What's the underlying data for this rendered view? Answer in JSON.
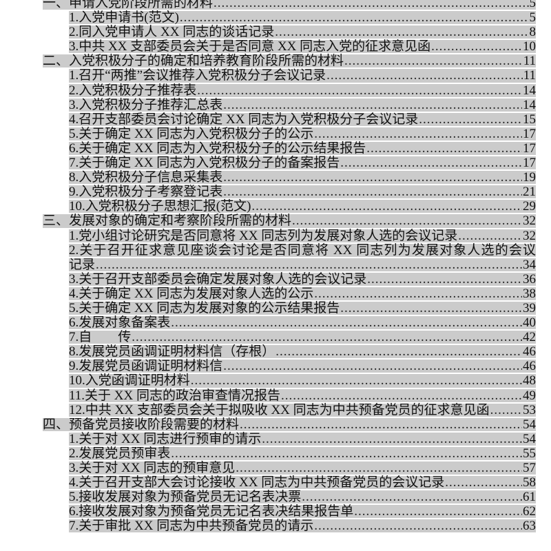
{
  "toc": [
    {
      "level": 1,
      "label": "一、申请入党阶段所需的材料",
      "page": "5"
    },
    {
      "level": 2,
      "label": "1.入党申请书(范文)",
      "page": "5"
    },
    {
      "level": 2,
      "label": "2.同入党申请人 XX 同志的谈话记录",
      "page": "8"
    },
    {
      "level": 2,
      "label": "3.中共 XX 支部委员会关于是否同意 XX 同志入党的征求意见函",
      "page": "10"
    },
    {
      "level": 1,
      "label": "二、入党积极分子的确定和培养教育阶段所需的材料",
      "page": "11"
    },
    {
      "level": 2,
      "label": "1.召开“两推”会议推荐入党积极分子会议记录",
      "page": "11"
    },
    {
      "level": 2,
      "label": "2.入党积极分子推荐表",
      "page": "14"
    },
    {
      "level": 2,
      "label": "3.入党积极分子推荐汇总表",
      "page": "14"
    },
    {
      "level": 2,
      "label": "4.召开支部委员会讨论确定 XX 同志为入党积极分子会议记录",
      "page": "15"
    },
    {
      "level": 2,
      "label": "5.关于确定 XX 同志为入党积极分子的公示",
      "page": "17"
    },
    {
      "level": 2,
      "label": "6.关于确定 XX 同志为入党积极分子的公示结果报告",
      "page": "17"
    },
    {
      "level": 2,
      "label": "7.关于确定 XX 同志为入党积极分子的备案报告",
      "page": "17"
    },
    {
      "level": 2,
      "label": "8.入党积极分子信息采集表",
      "page": "19"
    },
    {
      "level": 2,
      "label": "9.入党积极分子考察登记表",
      "page": "21"
    },
    {
      "level": 2,
      "label": "10.入党积极分子思想汇报(范文)",
      "page": "29"
    },
    {
      "level": 1,
      "label": "三、发展对象的确定和考察阶段所需的材料",
      "page": "32"
    },
    {
      "level": 2,
      "label": "1.党小组讨论研究是否同意将 XX 同志列为发展对象人选的会议记录",
      "page": "32"
    },
    {
      "level": 2,
      "label": "2.关于召开征求意见座谈会讨论是否同意将 XX 同志列为发展对象人选的会议",
      "wrap": true
    },
    {
      "level": 2,
      "label": "记录",
      "page": "34"
    },
    {
      "level": 2,
      "label": "3.关于召开支部委员会确定发展对象人选的会议记录",
      "page": "36"
    },
    {
      "level": 2,
      "label": "4.关于确定 XX 同志为发展对象人选的公示",
      "page": "38"
    },
    {
      "level": 2,
      "label": "5.关于确定 XX 同志为发展对象的公示结果报告",
      "page": "39"
    },
    {
      "level": 2,
      "label": "6.发展对象备案表",
      "page": "40"
    },
    {
      "level": 2,
      "label": "7.自　　传",
      "page": "42"
    },
    {
      "level": 2,
      "label": "8.发展党员函调证明材料信（存根）",
      "page": "46"
    },
    {
      "level": 2,
      "label": "9.发展党员函调证明材料信",
      "page": "46"
    },
    {
      "level": 2,
      "label": "10.入党函调证明材料",
      "page": "48"
    },
    {
      "level": 2,
      "label": "11.关于 XX 同志的政治审查情况报告",
      "page": "49"
    },
    {
      "level": 2,
      "label": "12.中共 XX 支部委员会关于拟吸收 XX 同志为中共预备党员的征求意见函",
      "page": "53"
    },
    {
      "level": 1,
      "label": "四、预备党员接收阶段需要的材料",
      "page": "54"
    },
    {
      "level": 2,
      "label": "1.关于对 XX 同志进行预审的请示",
      "page": "54"
    },
    {
      "level": 2,
      "label": "2.发展党员预审表",
      "page": "55"
    },
    {
      "level": 2,
      "label": "3.关于对 XX 同志的预审意见",
      "page": "57"
    },
    {
      "level": 2,
      "label": "4.关于召开支部大会讨论接收 XX 同志为中共预备党员的会议记录",
      "page": "58"
    },
    {
      "level": 2,
      "label": "5.接收发展对象为预备党员无记名表决票",
      "page": "61"
    },
    {
      "level": 2,
      "label": "6.接收发展对象为预备党员无记名表决结果报告单",
      "page": "62"
    },
    {
      "level": 2,
      "label": "7.关于审批 XX 同志为中共预备党员的请示",
      "page": "63"
    }
  ],
  "colors": {
    "highlight": "#cbcbcb",
    "text": "#111111"
  }
}
